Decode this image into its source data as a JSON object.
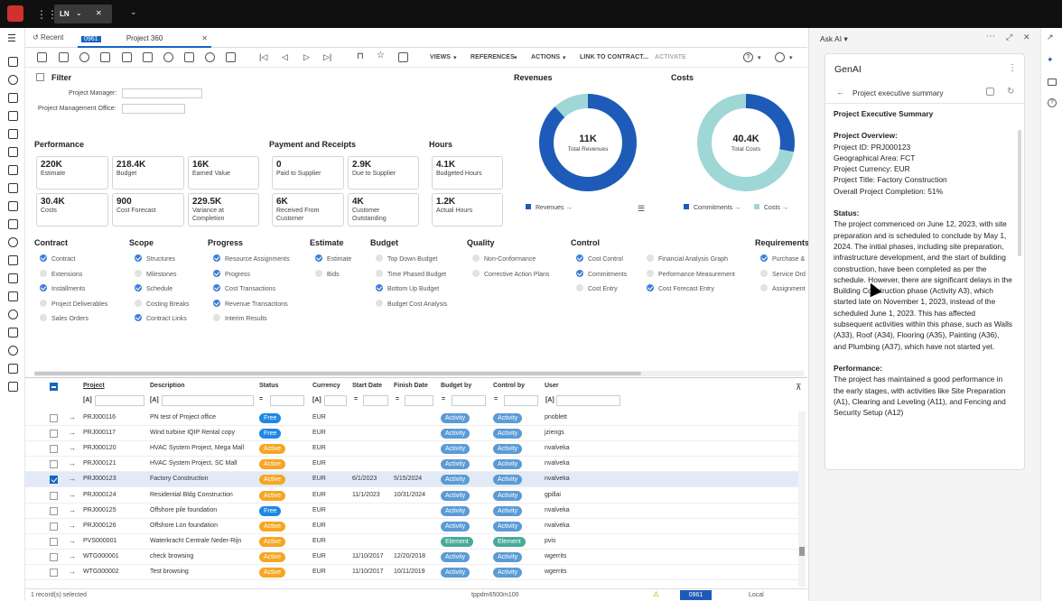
{
  "topbar": {
    "company": "LN"
  },
  "tabs": {
    "recent": "Recent",
    "session_code": "0961",
    "session_name": "Project 360"
  },
  "toolbar": {
    "views": "VIEWS",
    "references": "REFERENCES",
    "actions": "ACTIONS",
    "link_contract": "LINK TO CONTRACT...",
    "activate": "ACTIVATE"
  },
  "filter": {
    "title": "Filter",
    "pm_label": "Project Manager:",
    "pmo_label": "Project Management Office:"
  },
  "performance": {
    "title": "Performance",
    "cards": [
      {
        "value": "220K",
        "label": "Estimate"
      },
      {
        "value": "218.4K",
        "label": "Budget"
      },
      {
        "value": "16K",
        "label": "Earned Value"
      },
      {
        "value": "30.4K",
        "label": "Costs"
      },
      {
        "value": "900",
        "label": "Cost Forecast"
      },
      {
        "value": "229.5K",
        "label": "Variance at Completion"
      }
    ]
  },
  "payment": {
    "title": "Payment and Receipts",
    "cards": [
      {
        "value": "0",
        "label": "Paid to Supplier"
      },
      {
        "value": "2.9K",
        "label": "Due to Supplier"
      },
      {
        "value": "6K",
        "label": "Received From Customer"
      },
      {
        "value": "4K",
        "label": "Customer Outstanding"
      }
    ]
  },
  "hours": {
    "title": "Hours",
    "cards": [
      {
        "value": "4.1K",
        "label": "Budgeted Hours"
      },
      {
        "value": "1.2K",
        "label": "Actual Hours"
      }
    ]
  },
  "revenues": {
    "title": "Revenues",
    "center_value": "11K",
    "center_label": "Total Revenues",
    "legend": "Revenues"
  },
  "costs": {
    "title": "Costs",
    "center_value": "40.4K",
    "center_label": "Total Costs",
    "legend1": "Commitments",
    "legend2": "Costs"
  },
  "chart_data": [
    {
      "type": "pie",
      "title": "Revenues",
      "center": "11K Total Revenues",
      "series": [
        {
          "name": "Revenues",
          "values": [
            88,
            12
          ]
        }
      ],
      "colors": [
        "#1e5bb8",
        "#9fd6d6"
      ]
    },
    {
      "type": "pie",
      "title": "Costs",
      "center": "40.4K Total Costs",
      "series": [
        {
          "name": "Commitments",
          "value": 28
        },
        {
          "name": "Costs",
          "value": 72
        }
      ],
      "colors": [
        "#1e5bb8",
        "#9fd6d6"
      ]
    }
  ],
  "groups": [
    {
      "title": "Contract",
      "items": [
        {
          "label": "Contract",
          "on": true
        },
        {
          "label": "Extensions",
          "on": false
        },
        {
          "label": "Installments",
          "on": true
        },
        {
          "label": "Project Deliverables",
          "on": false
        },
        {
          "label": "Sales Orders",
          "on": false
        }
      ]
    },
    {
      "title": "Scope",
      "items": [
        {
          "label": "Structures",
          "on": true
        },
        {
          "label": "Milestones",
          "on": false
        },
        {
          "label": "Schedule",
          "on": true
        },
        {
          "label": "Costing Breaks",
          "on": false
        },
        {
          "label": "Contract Links",
          "on": true
        }
      ]
    },
    {
      "title": "Progress",
      "items": [
        {
          "label": "Resource Assignments",
          "on": true
        },
        {
          "label": "Progress",
          "on": true
        },
        {
          "label": "Cost Transactions",
          "on": true
        },
        {
          "label": "Revenue Transactions",
          "on": true
        },
        {
          "label": "Interim Results",
          "on": false
        }
      ]
    },
    {
      "title": "Estimate",
      "items": [
        {
          "label": "Estimate",
          "on": true
        },
        {
          "label": "Bids",
          "on": false
        }
      ]
    },
    {
      "title": "Budget",
      "items": [
        {
          "label": "Top Down Budget",
          "on": false
        },
        {
          "label": "Time Phased Budget",
          "on": false
        },
        {
          "label": "Bottom Up Budget",
          "on": true
        },
        {
          "label": "Budget Cost Analysis",
          "on": false
        }
      ]
    },
    {
      "title": "Quality",
      "items": [
        {
          "label": "Non-Conformance",
          "on": false
        },
        {
          "label": "Corrective Action Plans",
          "on": false
        }
      ]
    },
    {
      "title": "Control",
      "items": [
        {
          "label": "Cost Control",
          "on": true
        },
        {
          "label": "Commitments",
          "on": true
        },
        {
          "label": "Cost Entry",
          "on": false
        }
      ]
    },
    {
      "title": "",
      "items": [
        {
          "label": "Financial Analysis Graph",
          "on": false
        },
        {
          "label": "Performance Measurement",
          "on": false
        },
        {
          "label": "Cost Forecast Entry",
          "on": true
        }
      ]
    },
    {
      "title": "Requirements",
      "items": [
        {
          "label": "Purchase &",
          "on": true
        },
        {
          "label": "Service Ord",
          "on": false
        },
        {
          "label": "Assignment",
          "on": false
        }
      ]
    }
  ],
  "table": {
    "columns": [
      "Project",
      "Description",
      "Status",
      "Currency",
      "Start Date",
      "Finish Date",
      "Budget by",
      "Control by",
      "User"
    ],
    "filter_token": "[A]",
    "rows": [
      {
        "project": "PRJ000116",
        "desc": "PN test of Project office",
        "status": "Free",
        "currency": "EUR",
        "start": "",
        "finish": "",
        "budget": "Activity",
        "control": "Activity",
        "user": "pnoblett",
        "sel": false
      },
      {
        "project": "PRJ000117",
        "desc": "Wind turbine IQIP Rental  copy",
        "status": "Free",
        "currency": "EUR",
        "start": "",
        "finish": "",
        "budget": "Activity",
        "control": "Activity",
        "user": "jziengs",
        "sel": false
      },
      {
        "project": "PRJ000120",
        "desc": "HVAC System Project, Mega Mall",
        "status": "Active",
        "currency": "EUR",
        "start": "",
        "finish": "",
        "budget": "Activity",
        "control": "Activity",
        "user": "nvalveka",
        "sel": false
      },
      {
        "project": "PRJ000121",
        "desc": "HVAC System Project, SC Mall",
        "status": "Active",
        "currency": "EUR",
        "start": "",
        "finish": "",
        "budget": "Activity",
        "control": "Activity",
        "user": "nvalveka",
        "sel": false
      },
      {
        "project": "PRJ000123",
        "desc": "Factory Construction",
        "status": "Active",
        "currency": "EUR",
        "start": "6/1/2023",
        "finish": "5/15/2024",
        "budget": "Activity",
        "control": "Activity",
        "user": "nvalveka",
        "sel": true
      },
      {
        "project": "PRJ000124",
        "desc": "Residential Bldg Construction",
        "status": "Active",
        "currency": "EUR",
        "start": "11/1/2023",
        "finish": "10/31/2024",
        "budget": "Activity",
        "control": "Activity",
        "user": "gpillai",
        "sel": false
      },
      {
        "project": "PRJ000125",
        "desc": "Offshore pile foundation",
        "status": "Free",
        "currency": "EUR",
        "start": "",
        "finish": "",
        "budget": "Activity",
        "control": "Activity",
        "user": "nvalveka",
        "sel": false
      },
      {
        "project": "PRJ000126",
        "desc": "Offshore Lon foundation",
        "status": "Active",
        "currency": "EUR",
        "start": "",
        "finish": "",
        "budget": "Activity",
        "control": "Activity",
        "user": "nvalveka",
        "sel": false
      },
      {
        "project": "PVS000001",
        "desc": "Waterkracht Centrale Neder-Rijn",
        "status": "Active",
        "currency": "EUR",
        "start": "",
        "finish": "",
        "budget": "Element",
        "control": "Element",
        "user": "pvis",
        "sel": false
      },
      {
        "project": "WTG000001",
        "desc": "check browsing",
        "status": "Active",
        "currency": "EUR",
        "start": "11/10/2017",
        "finish": "12/20/2018",
        "budget": "Activity",
        "control": "Activity",
        "user": "wgerrits",
        "sel": false
      },
      {
        "project": "WTG000002",
        "desc": "Test browsing",
        "status": "Active",
        "currency": "EUR",
        "start": "11/10/2017",
        "finish": "10/11/2019",
        "budget": "Activity",
        "control": "Activity",
        "user": "wgerrits",
        "sel": false
      }
    ]
  },
  "statusbar": {
    "selected": "1 record(s) selected",
    "session": "tppdm6500m100",
    "code": "0961",
    "locale": "Local"
  },
  "ai": {
    "title": "Ask AI",
    "card_title": "GenAI",
    "nav_title": "Project executive summary",
    "heading": "Project Executive Summary",
    "overview_h": "Project Overview:",
    "overview_lines": [
      "Project ID: PRJ000123",
      "Geographical Area: FCT",
      "Project Currency: EUR",
      "Project Title: Factory Construction",
      "Overall Project Completion: 51%"
    ],
    "status_h": "Status:",
    "status_text": "The project commenced on June 12, 2023, with site preparation and is scheduled to conclude by May 1, 2024. The initial phases, including site preparation, infrastructure development, and the start of building construction, have been completed as per the schedule. However, there are significant delays in the Building Construction phase (Activity A3), which started late on November 1, 2023, instead of the scheduled June 1, 2023. This has affected subsequent activities within this phase, such as Walls (A33), Roof (A34), Flooring (A35), Painting (A36), and Plumbing (A37), which have not started yet.",
    "perf_h": "Performance:",
    "perf_text": "The project has maintained a good performance in the early stages, with activities like Site Preparation (A1), Clearing and Leveling (A11), and Fencing and Security Setup (A12)"
  }
}
